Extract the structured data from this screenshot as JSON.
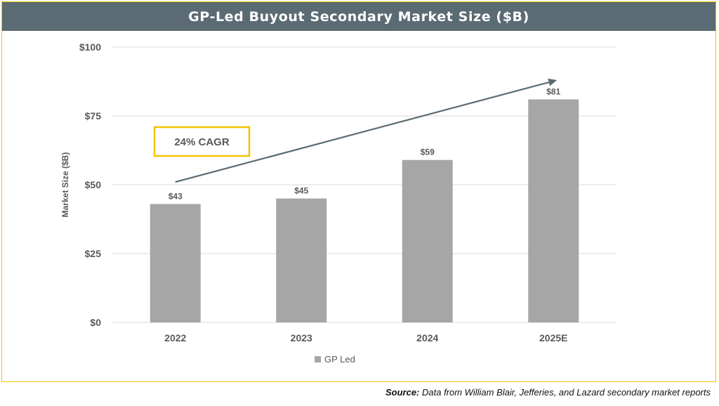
{
  "colors": {
    "header_bg": "#5b6b74",
    "frame_border": "#f2c400",
    "bar": "#a6a6a6",
    "arrow": "#5b6b74",
    "grid": "#d9d9d9",
    "text": "#595959"
  },
  "chart_data": {
    "type": "bar",
    "title": "GP-Led Buyout Secondary Market Size ($B)",
    "xlabel": "",
    "ylabel": "Market Size ($B)",
    "categories": [
      "2022",
      "2023",
      "2024",
      "2025E"
    ],
    "series": [
      {
        "name": "GP Led",
        "values": [
          43,
          45,
          59,
          81
        ]
      }
    ],
    "data_labels": [
      "$43",
      "$45",
      "$59",
      "$81"
    ],
    "ylim": [
      0,
      100
    ],
    "y_ticks": [
      0,
      25,
      50,
      75,
      100
    ],
    "y_tick_labels": [
      "$0",
      "$25",
      "$50",
      "$75",
      "$100"
    ],
    "grid": true,
    "legend": "bottom-center",
    "annotation": {
      "text": "24% CAGR",
      "arrow_from": {
        "category": "2022",
        "value": 51
      },
      "arrow_to": {
        "category": "2025E",
        "value": 88
      }
    }
  },
  "source": {
    "label": "Source:",
    "text": " Data from William Blair, Jefferies, and Lazard secondary market reports"
  }
}
